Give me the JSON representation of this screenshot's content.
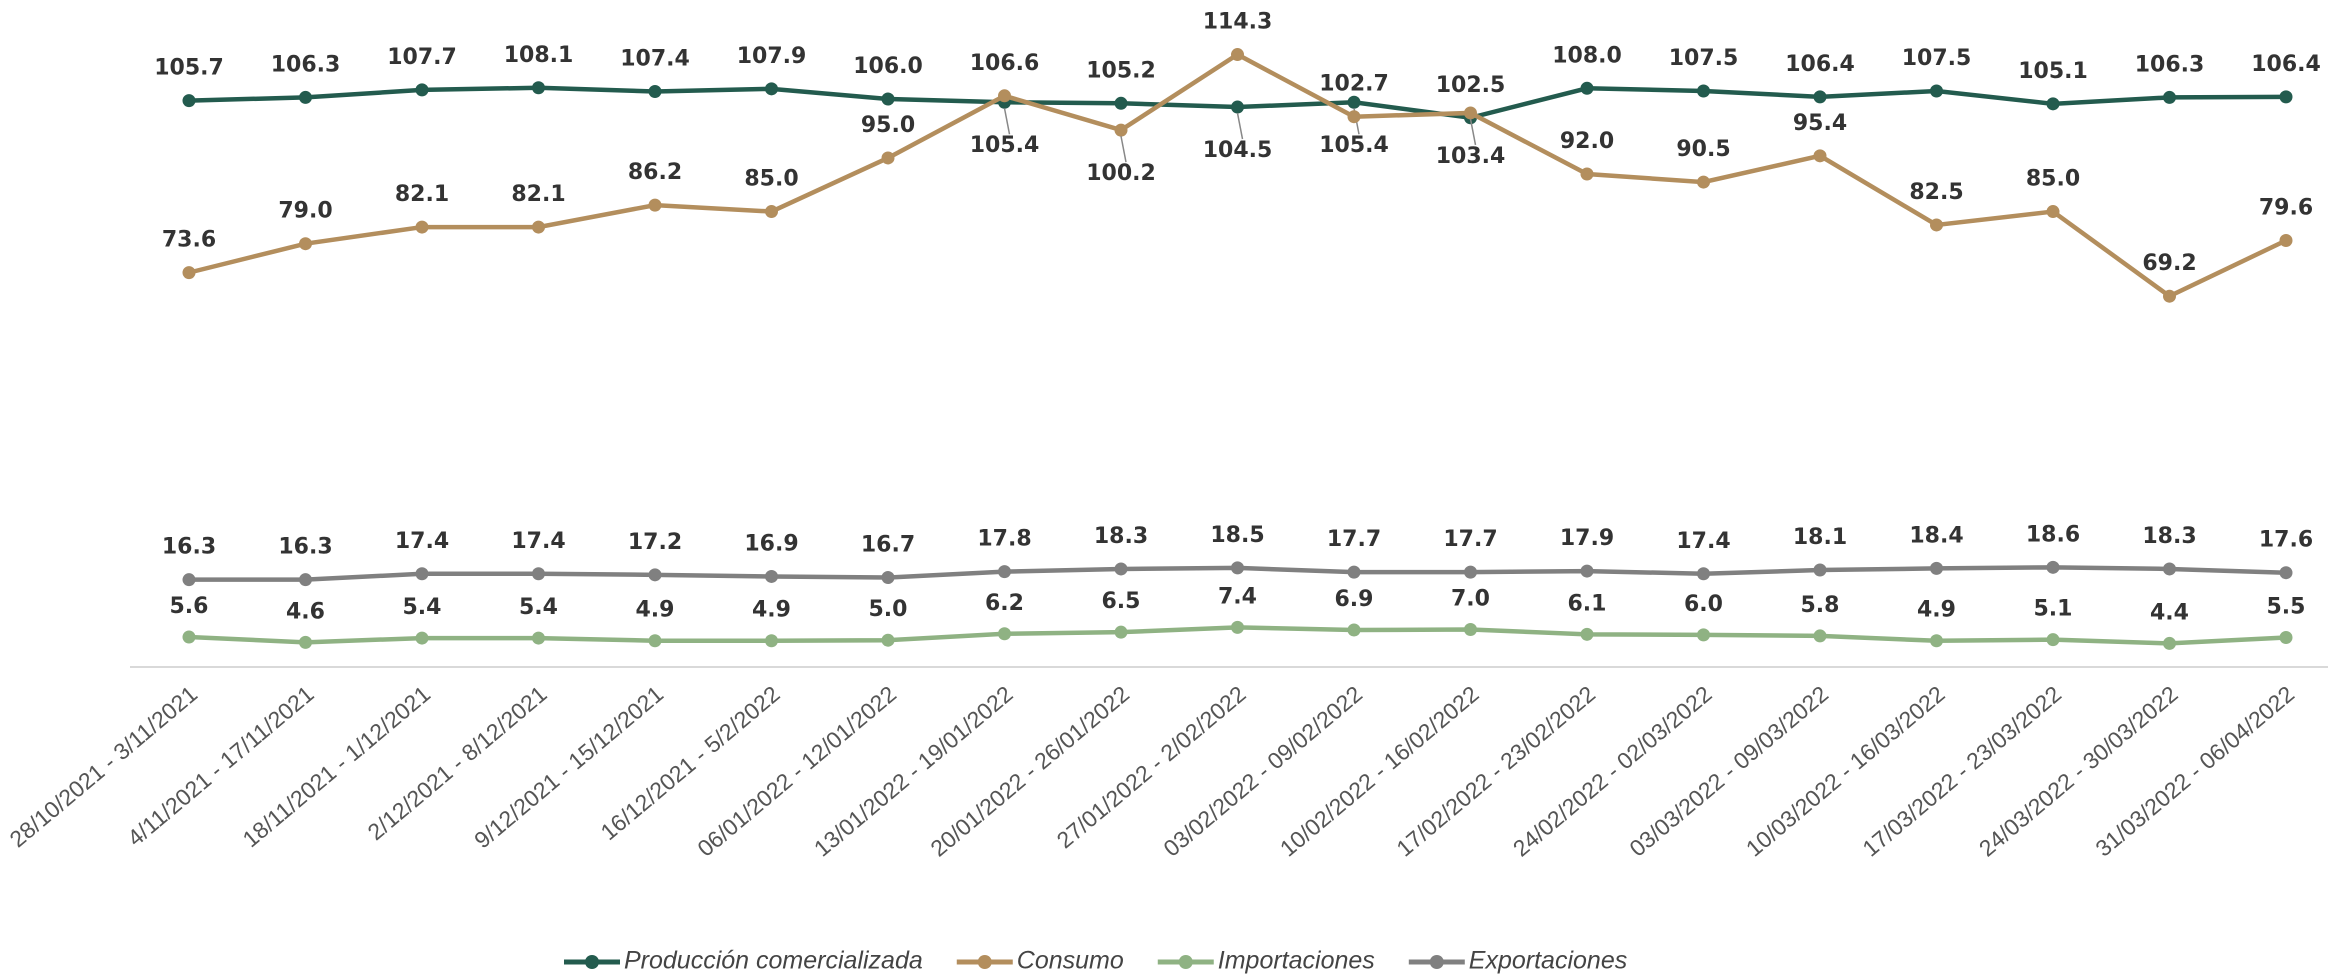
{
  "chart_data": {
    "type": "line",
    "categories": [
      "28/10/2021 - 3/11/2021",
      "4/11/2021 - 17/11/2021",
      "18/11/2021 - 1/12/2021",
      "2/12/2021 - 8/12/2021",
      "9/12/2021 - 15/12/2021",
      "16/12/2021 - 5/2/2022",
      "06/01/2022 - 12/01/2022",
      "13/01/2022 - 19/01/2022",
      "20/01/2022 - 26/01/2022",
      "27/01/2022 - 2/02/2022",
      "03/02/2022 - 09/02/2022",
      "10/02/2022 - 16/02/2022",
      "17/02/2022 - 23/02/2022",
      "24/02/2022 - 02/03/2022",
      "03/03/2022 - 09/03/2022",
      "10/03/2022 - 16/03/2022",
      "17/03/2022 - 23/03/2022",
      "24/03/2022 - 30/03/2022",
      "31/03/2022 - 06/04/2022"
    ],
    "series": [
      {
        "name": "Producción comercializada",
        "color": "#235b4e",
        "values": [
          105.7,
          106.3,
          107.7,
          108.1,
          107.4,
          107.9,
          106.0,
          105.4,
          105.2,
          104.5,
          105.4,
          102.5,
          108.0,
          107.5,
          106.4,
          107.5,
          105.1,
          106.3,
          106.4
        ],
        "value_labels": [
          "105.7",
          "106.3",
          "107.7",
          "108.1",
          "107.4",
          "107.9",
          "106.0",
          "105.4",
          "105.2",
          "104.5",
          "105.4",
          "102.5",
          "108.0",
          "107.5",
          "106.4",
          "107.5",
          "105.1",
          "106.3",
          "106.4"
        ]
      },
      {
        "name": "Consumo",
        "color": "#b38e5d",
        "values": [
          73.6,
          79.0,
          82.1,
          82.1,
          86.2,
          85.0,
          95.0,
          106.6,
          100.2,
          114.3,
          102.7,
          103.4,
          92.0,
          90.5,
          95.4,
          82.5,
          85.0,
          69.2,
          79.6
        ],
        "value_labels": [
          "73.6",
          "79.0",
          "82.1",
          "82.1",
          "86.2",
          "85.0",
          "95.0",
          "106.6",
          "100.2",
          "114.3",
          "102.7",
          "103.4",
          "92.0",
          "90.5",
          "95.4",
          "82.5",
          "85.0",
          "69.2",
          "79.6"
        ]
      },
      {
        "name": "Importaciones",
        "color": "#8fb283",
        "values": [
          5.6,
          4.6,
          5.4,
          5.4,
          4.9,
          4.9,
          5.0,
          6.2,
          6.5,
          7.4,
          6.9,
          7.0,
          6.1,
          6.0,
          5.8,
          4.9,
          5.1,
          4.4,
          5.5
        ],
        "value_labels": [
          "5.6",
          "4.6",
          "5.4",
          "5.4",
          "4.9",
          "4.9",
          "5.0",
          "6.2",
          "6.5",
          "7.4",
          "6.9",
          "7.0",
          "6.1",
          "6.0",
          "5.8",
          "4.9",
          "5.1",
          "4.4",
          "5.5"
        ]
      },
      {
        "name": "Exportaciones",
        "color": "#808080",
        "values": [
          16.3,
          16.3,
          17.4,
          17.4,
          17.2,
          16.9,
          16.7,
          17.8,
          18.3,
          18.5,
          17.7,
          17.7,
          17.9,
          17.4,
          18.1,
          18.4,
          18.6,
          18.3,
          17.6
        ],
        "value_labels": [
          "16.3",
          "16.3",
          "17.4",
          "17.4",
          "17.2",
          "16.9",
          "16.7",
          "17.8",
          "18.3",
          "18.5",
          "17.7",
          "17.7",
          "17.9",
          "17.4",
          "18.1",
          "18.4",
          "18.6",
          "18.3",
          "17.6"
        ]
      }
    ],
    "ylim": [
      0,
      120
    ],
    "legend": "bottom"
  }
}
